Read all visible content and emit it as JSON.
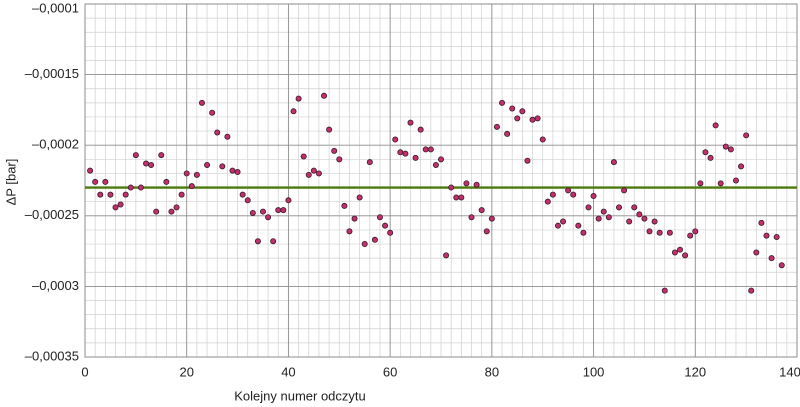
{
  "chart_data": {
    "type": "scatter",
    "x_label": "Kolejny numer odczytu",
    "y_label": "ΔP [bar]",
    "xlim": [
      0,
      140
    ],
    "xticks": [
      0,
      20,
      40,
      60,
      80,
      100,
      120,
      140
    ],
    "ylim": [
      -0.00035,
      -0.0001
    ],
    "yticks": [
      {
        "value": -0.00035,
        "label": "–0,00035"
      },
      {
        "value": -0.0003,
        "label": "–0,0003"
      },
      {
        "value": -0.00025,
        "label": "–0,00025"
      },
      {
        "value": -0.0002,
        "label": "–0,0002"
      },
      {
        "value": -0.00015,
        "label": "–0,00015"
      },
      {
        "value": -0.0001,
        "label": "–0,0001"
      }
    ],
    "grid": true,
    "minor_divisions": {
      "x": 10,
      "y": 5
    },
    "color": "#c2306c",
    "reference_line": {
      "value": -0.00023,
      "color": "#4b7a0c"
    },
    "x": [
      1,
      2,
      3,
      4,
      5,
      6,
      7,
      8,
      9,
      10,
      11,
      12,
      13,
      14,
      15,
      16,
      17,
      18,
      19,
      20,
      21,
      22,
      23,
      24,
      25,
      26,
      27,
      28,
      29,
      30,
      31,
      32,
      33,
      34,
      35,
      36,
      37,
      38,
      39,
      40,
      41,
      42,
      43,
      44,
      45,
      46,
      47,
      48,
      49,
      50,
      51,
      52,
      53,
      54,
      55,
      56,
      57,
      58,
      59,
      60,
      61,
      62,
      63,
      64,
      65,
      66,
      67,
      68,
      69,
      70,
      71,
      72,
      73,
      74,
      75,
      76,
      77,
      78,
      79,
      80,
      81,
      82,
      83,
      84,
      85,
      86,
      87,
      88,
      89,
      90,
      91,
      92,
      93,
      94,
      95,
      96,
      97,
      98,
      99,
      100,
      101,
      102,
      103,
      104,
      105,
      106,
      107,
      108,
      109,
      110,
      111,
      112,
      113,
      114,
      115,
      116,
      117,
      118,
      119,
      120,
      121,
      122,
      123,
      124,
      125,
      126,
      127,
      128,
      129,
      130,
      131,
      132,
      133,
      134,
      135,
      136,
      137
    ],
    "values": [
      -0.000218,
      -0.000226,
      -0.000235,
      -0.000226,
      -0.000235,
      -0.000244,
      -0.000242,
      -0.000235,
      -0.00023,
      -0.000207,
      -0.00023,
      -0.000213,
      -0.000214,
      -0.000247,
      -0.000207,
      -0.000226,
      -0.000247,
      -0.000244,
      -0.000235,
      -0.00022,
      -0.000229,
      -0.000221,
      -0.00017,
      -0.000214,
      -0.000177,
      -0.000191,
      -0.000215,
      -0.000194,
      -0.000218,
      -0.000219,
      -0.000235,
      -0.000239,
      -0.000248,
      -0.000268,
      -0.000247,
      -0.000251,
      -0.000268,
      -0.000246,
      -0.000246,
      -0.000239,
      -0.000176,
      -0.000167,
      -0.000208,
      -0.000221,
      -0.000218,
      -0.00022,
      -0.000165,
      -0.000189,
      -0.000204,
      -0.00021,
      -0.000243,
      -0.000261,
      -0.000252,
      -0.000237,
      -0.00027,
      -0.000212,
      -0.000267,
      -0.000251,
      -0.000257,
      -0.000262,
      -0.000196,
      -0.000205,
      -0.000206,
      -0.000184,
      -0.000209,
      -0.000189,
      -0.000203,
      -0.000203,
      -0.000214,
      -0.00021,
      -0.000278,
      -0.00023,
      -0.000237,
      -0.000237,
      -0.000227,
      -0.000251,
      -0.000228,
      -0.000246,
      -0.000261,
      -0.000252,
      -0.000187,
      -0.00017,
      -0.000192,
      -0.000174,
      -0.000181,
      -0.000176,
      -0.000211,
      -0.000182,
      -0.000181,
      -0.000196,
      -0.00024,
      -0.000235,
      -0.000257,
      -0.000254,
      -0.000232,
      -0.000235,
      -0.000257,
      -0.000262,
      -0.000244,
      -0.000236,
      -0.000252,
      -0.000247,
      -0.000251,
      -0.000212,
      -0.000244,
      -0.000232,
      -0.000254,
      -0.000244,
      -0.000249,
      -0.000252,
      -0.000261,
      -0.000254,
      -0.000262,
      -0.000303,
      -0.000262,
      -0.000276,
      -0.000274,
      -0.000278,
      -0.000264,
      -0.000261,
      -0.000227,
      -0.000205,
      -0.000209,
      -0.000186,
      -0.000227,
      -0.000201,
      -0.000203,
      -0.000225,
      -0.000215,
      -0.000193,
      -0.000303,
      -0.000276,
      -0.000255,
      -0.000264,
      -0.00028,
      -0.000265,
      -0.000285
    ]
  }
}
